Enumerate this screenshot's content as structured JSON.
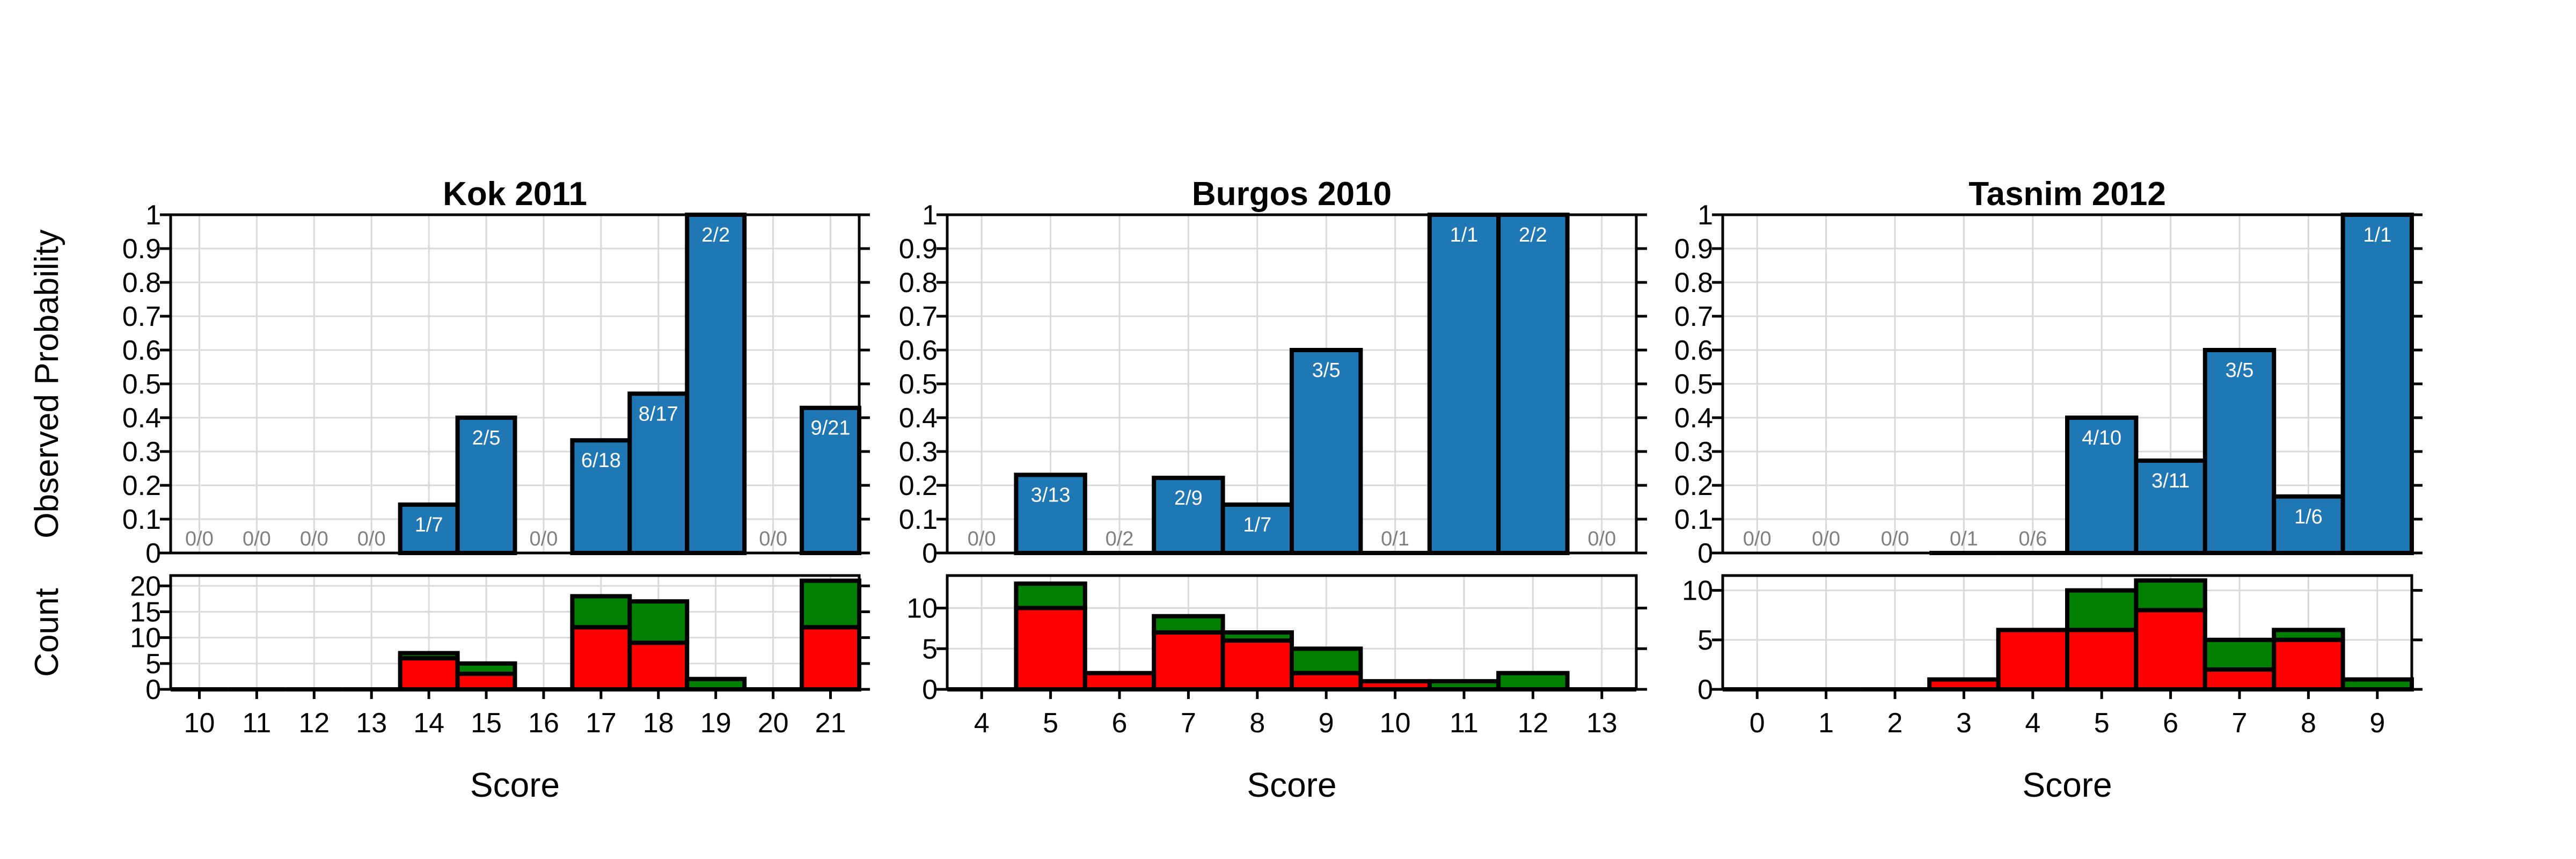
{
  "figure": {
    "ylabel_top": "Observed Probability",
    "ylabel_bottom": "Count",
    "xlabel": "Score"
  },
  "colors": {
    "bar_blue": "#1f77b4",
    "count_red": "#ff0000",
    "count_green": "#007f00",
    "zero_label": "#808080",
    "grid": "#d9d9d9"
  },
  "chart_data": [
    {
      "type": "bar",
      "title": "Kok 2011",
      "xlabel": "Score",
      "ylabel": "Observed Probability",
      "categories": [
        "10",
        "11",
        "12",
        "13",
        "14",
        "15",
        "16",
        "17",
        "18",
        "19",
        "20",
        "21"
      ],
      "probability": [
        0,
        0,
        0,
        0,
        0.143,
        0.4,
        0,
        0.333,
        0.471,
        1.0,
        0,
        0.429
      ],
      "fraction_labels": [
        "0/0",
        "0/0",
        "0/0",
        "0/0",
        "1/7",
        "2/5",
        "0/0",
        "6/18",
        "8/17",
        "2/2",
        "0/0",
        "9/21"
      ],
      "ylim": [
        0,
        1
      ],
      "yticks": [
        "0",
        "0.1",
        "0.2",
        "0.3",
        "0.4",
        "0.5",
        "0.6",
        "0.7",
        "0.8",
        "0.9",
        "1"
      ],
      "counts": {
        "ylim": [
          0,
          22
        ],
        "yticks": [
          "0",
          "5",
          "10",
          "15",
          "20"
        ],
        "series": [
          {
            "color": "red",
            "values": [
              0,
              0,
              0,
              0,
              6,
              3,
              0,
              12,
              9,
              0,
              0,
              12
            ]
          },
          {
            "color": "green",
            "values": [
              0,
              0,
              0,
              0,
              1,
              2,
              0,
              6,
              8,
              2,
              0,
              9
            ]
          }
        ]
      }
    },
    {
      "type": "bar",
      "title": "Burgos 2010",
      "xlabel": "Score",
      "ylabel": "Observed Probability",
      "categories": [
        "4",
        "5",
        "6",
        "7",
        "8",
        "9",
        "10",
        "11",
        "12",
        "13"
      ],
      "probability": [
        0,
        0.231,
        0,
        0.222,
        0.143,
        0.6,
        0,
        1.0,
        1.0,
        0
      ],
      "fraction_labels": [
        "0/0",
        "3/13",
        "0/2",
        "2/9",
        "1/7",
        "3/5",
        "0/1",
        "1/1",
        "2/2",
        "0/0"
      ],
      "ylim": [
        0,
        1
      ],
      "yticks": [
        "0",
        "0.1",
        "0.2",
        "0.3",
        "0.4",
        "0.5",
        "0.6",
        "0.7",
        "0.8",
        "0.9",
        "1"
      ],
      "counts": {
        "ylim": [
          0,
          14
        ],
        "yticks": [
          "0",
          "5",
          "10"
        ],
        "series": [
          {
            "color": "red",
            "values": [
              0,
              10,
              2,
              7,
              6,
              2,
              1,
              0,
              0,
              0
            ]
          },
          {
            "color": "green",
            "values": [
              0,
              3,
              0,
              2,
              1,
              3,
              0,
              1,
              2,
              0
            ]
          }
        ]
      }
    },
    {
      "type": "bar",
      "title": "Tasnim 2012",
      "xlabel": "Score",
      "ylabel": "Observed Probability",
      "categories": [
        "0",
        "1",
        "2",
        "3",
        "4",
        "5",
        "6",
        "7",
        "8",
        "9"
      ],
      "probability": [
        0,
        0,
        0,
        0,
        0,
        0.4,
        0.273,
        0.6,
        0.167,
        1.0
      ],
      "fraction_labels": [
        "0/0",
        "0/0",
        "0/0",
        "0/1",
        "0/6",
        "4/10",
        "3/11",
        "3/5",
        "1/6",
        "1/1"
      ],
      "ylim": [
        0,
        1
      ],
      "yticks": [
        "0",
        "0.1",
        "0.2",
        "0.3",
        "0.4",
        "0.5",
        "0.6",
        "0.7",
        "0.8",
        "0.9",
        "1"
      ],
      "counts": {
        "ylim": [
          0,
          11.5
        ],
        "yticks": [
          "0",
          "5",
          "10"
        ],
        "series": [
          {
            "color": "red",
            "values": [
              0,
              0,
              0,
              1,
              6,
              6,
              8,
              2,
              5,
              0
            ]
          },
          {
            "color": "green",
            "values": [
              0,
              0,
              0,
              0,
              0,
              4,
              3,
              3,
              1,
              1
            ]
          }
        ]
      }
    }
  ]
}
